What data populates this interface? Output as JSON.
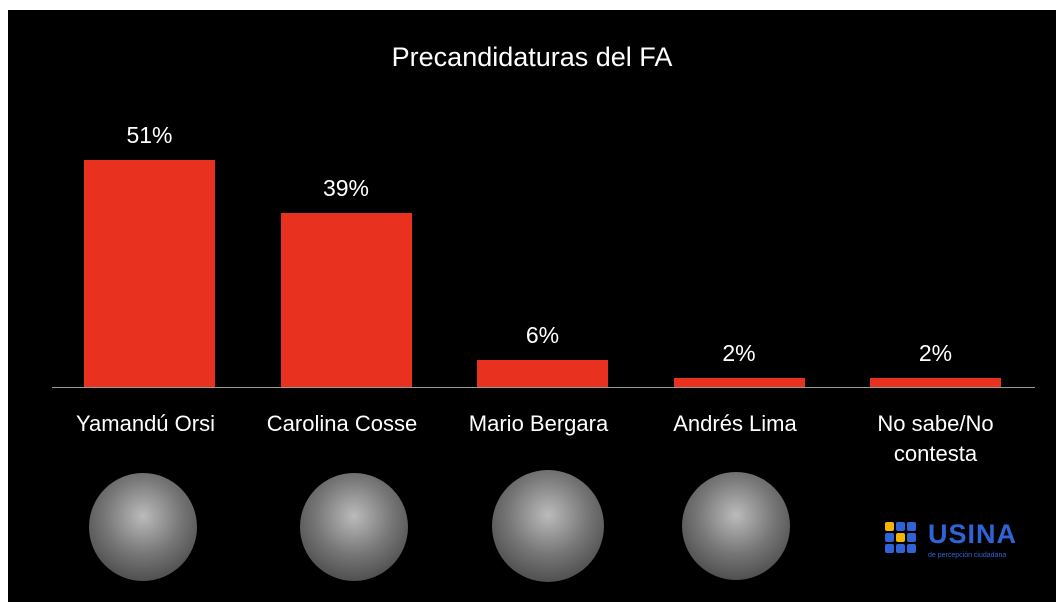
{
  "chart_data": {
    "type": "bar",
    "title": "Precandidaturas del FA",
    "categories": [
      "Yamandú Orsi",
      "Carolina Cosse",
      "Mario Bergara",
      "Andrés Lima",
      "No sabe/No contesta"
    ],
    "values": [
      51,
      39,
      6,
      2,
      2
    ],
    "value_labels": [
      "51%",
      "39%",
      "6%",
      "2%",
      "2%"
    ],
    "color": "#e8321f"
  },
  "logo": {
    "name": "USINA",
    "tagline": "de percepción ciudadana"
  }
}
